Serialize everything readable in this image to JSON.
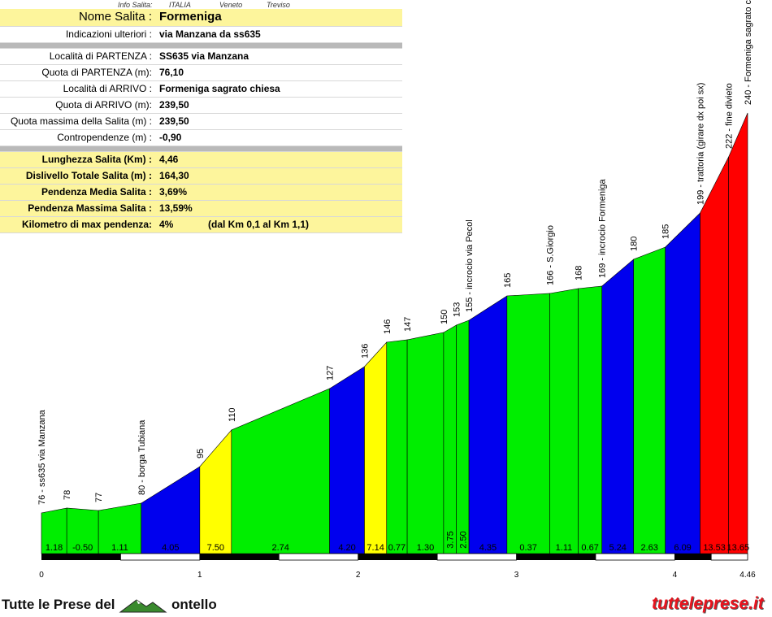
{
  "header": {
    "info_label": "Info Salita:",
    "country": "ITALIA",
    "region": "Veneto",
    "province": "Treviso"
  },
  "info": {
    "title_label": "Nome Salita :",
    "title_value": "Formeniga",
    "rows": [
      {
        "label": "Indicazioni ulteriori :",
        "value": "via Manzana da ss635"
      },
      {
        "label": "Località di PARTENZA :",
        "value": "SS635 via Manzana"
      },
      {
        "label": "Quota di PARTENZA (m):",
        "value": "76,10"
      },
      {
        "label": "Località di ARRIVO :",
        "value": "Formeniga sagrato chiesa"
      },
      {
        "label": "Quota di ARRIVO (m):",
        "value": "239,50"
      },
      {
        "label": "Quota massima della Salita (m) :",
        "value": "239,50"
      },
      {
        "label": "Contropendenze (m) :",
        "value": "-0,90"
      }
    ],
    "summary": [
      {
        "label": "Lunghezza Salita (Km) :",
        "value": "4,46"
      },
      {
        "label": "Dislivello Totale Salita (m) :",
        "value": "164,30"
      },
      {
        "label": "Pendenza Media Salita :",
        "value": "3,69%"
      },
      {
        "label": "Pendenza Massima Salita :",
        "value": "13,59%"
      },
      {
        "label": "Kilometro di max pendenza:",
        "value": "4%",
        "extra": "(dal Km 0,1 al Km 1,1)"
      }
    ]
  },
  "chart_data": {
    "type": "area",
    "xlabel": "",
    "ylabel": "",
    "xlim": [
      0,
      4.46
    ],
    "ylim": [
      76,
      240
    ],
    "x_ticks": [
      "0",
      "1",
      "2",
      "3",
      "4",
      "4.46"
    ],
    "points": [
      {
        "x": 0.0,
        "y": 76,
        "label": "76 - ss635 via Manzana"
      },
      {
        "x": 0.16,
        "y": 78,
        "label": "78"
      },
      {
        "x": 0.36,
        "y": 77,
        "label": "77"
      },
      {
        "x": 0.63,
        "y": 80,
        "label": "80 - borga Tubiana"
      },
      {
        "x": 1.0,
        "y": 95,
        "label": "95"
      },
      {
        "x": 1.2,
        "y": 110,
        "label": "110"
      },
      {
        "x": 1.82,
        "y": 127,
        "label": "127"
      },
      {
        "x": 2.04,
        "y": 136,
        "label": "136"
      },
      {
        "x": 2.18,
        "y": 146,
        "label": "146"
      },
      {
        "x": 2.31,
        "y": 147,
        "label": "147"
      },
      {
        "x": 2.54,
        "y": 150,
        "label": "150"
      },
      {
        "x": 2.62,
        "y": 153,
        "label": "153"
      },
      {
        "x": 2.7,
        "y": 155,
        "label": "155 - incrocio via Pecol"
      },
      {
        "x": 2.94,
        "y": 165,
        "label": "165"
      },
      {
        "x": 3.21,
        "y": 166,
        "label": "166 - S.Giorgio"
      },
      {
        "x": 3.39,
        "y": 168,
        "label": "168"
      },
      {
        "x": 3.54,
        "y": 169,
        "label": "169 - incrocio Formeniga"
      },
      {
        "x": 3.74,
        "y": 180,
        "label": "180"
      },
      {
        "x": 3.94,
        "y": 185,
        "label": "185"
      },
      {
        "x": 4.16,
        "y": 199,
        "label": "199 - trattoria (girare dx poi sx)"
      },
      {
        "x": 4.34,
        "y": 222,
        "label": "222 - fine divieto"
      },
      {
        "x": 4.46,
        "y": 240,
        "label": "240 - Formeniga sagrato chiesa"
      }
    ],
    "segments": [
      {
        "grade": "1.18",
        "color": "#00ee00"
      },
      {
        "grade": "-0.50",
        "color": "#00ee00"
      },
      {
        "grade": "1.11",
        "color": "#00ee00"
      },
      {
        "grade": "4.05",
        "color": "#0000ee"
      },
      {
        "grade": "7.50",
        "color": "#ffff00"
      },
      {
        "grade": "2.74",
        "color": "#00ee00"
      },
      {
        "grade": "4.20",
        "color": "#0000ee"
      },
      {
        "grade": "7.14",
        "color": "#ffff00"
      },
      {
        "grade": "0.77",
        "color": "#00ee00"
      },
      {
        "grade": "1.30",
        "color": "#00ee00"
      },
      {
        "grade": "3.75",
        "color": "#00ee00"
      },
      {
        "grade": "2.50",
        "color": "#00ee00"
      },
      {
        "grade": "4.35",
        "color": "#0000ee"
      },
      {
        "grade": "0.37",
        "color": "#00ee00"
      },
      {
        "grade": "1.11",
        "color": "#00ee00"
      },
      {
        "grade": "0.67",
        "color": "#00ee00"
      },
      {
        "grade": "5.24",
        "color": "#0000ee"
      },
      {
        "grade": "2.63",
        "color": "#00ee00"
      },
      {
        "grade": "6.09",
        "color": "#0000ee"
      },
      {
        "grade": "13.53",
        "color": "#ff0000"
      },
      {
        "grade": "13.65",
        "color": "#ff0000"
      }
    ]
  },
  "footer": {
    "left_text_1": "Tutte le Prese del",
    "left_text_2": "ontello",
    "right_text": "tutteleprese.it"
  }
}
